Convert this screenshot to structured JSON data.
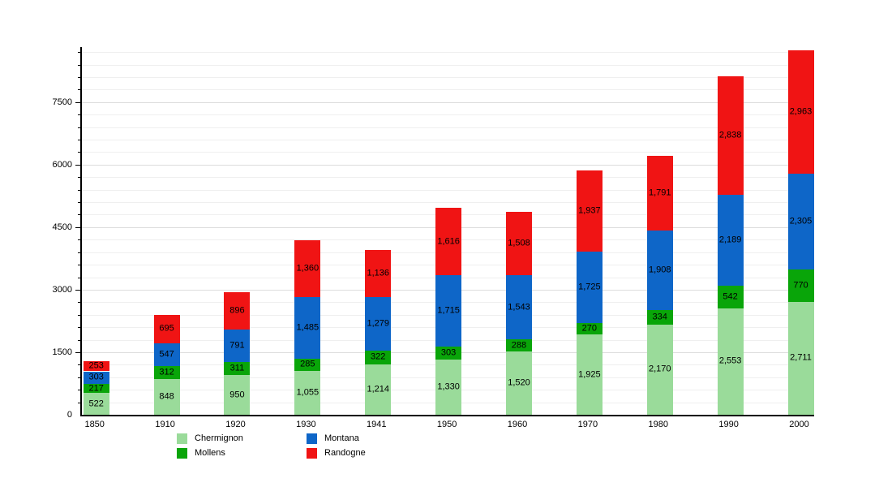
{
  "chart_data": {
    "type": "bar",
    "stacked": true,
    "title": "",
    "xlabel": "",
    "ylabel": "",
    "categories": [
      "1850",
      "1910",
      "1920",
      "1930",
      "1941",
      "1950",
      "1960",
      "1970",
      "1980",
      "1990",
      "2000"
    ],
    "series": [
      {
        "name": "Chermignon",
        "color": "#9adb9a",
        "values": [
          522,
          848,
          950,
          1055,
          1214,
          1330,
          1520,
          1925,
          2170,
          2553,
          2711
        ]
      },
      {
        "name": "Mollens",
        "color": "#09a509",
        "values": [
          217,
          312,
          311,
          285,
          322,
          303,
          288,
          270,
          334,
          542,
          770
        ]
      },
      {
        "name": "Montana",
        "color": "#0e66c8",
        "values": [
          303,
          547,
          791,
          1485,
          1279,
          1715,
          1543,
          1725,
          1908,
          2189,
          2305
        ]
      },
      {
        "name": "Randogne",
        "color": "#f01414",
        "values": [
          253,
          695,
          896,
          1360,
          1136,
          1616,
          1508,
          1937,
          1791,
          2838,
          2963
        ]
      }
    ],
    "ylim": [
      0,
      8820
    ],
    "y_major_step": 1500,
    "y_minor_step": 300,
    "ytick_labels": [
      "0",
      "1500",
      "3000",
      "4500",
      "6000",
      "7500"
    ],
    "grid": true,
    "legend_position": "bottom",
    "legend_columns": [
      [
        "Chermignon",
        "Mollens"
      ],
      [
        "Montana",
        "Randogne"
      ]
    ],
    "bar_color_names": {
      "Chermignon": "light-green",
      "Mollens": "green",
      "Montana": "blue",
      "Randogne": "red"
    }
  }
}
